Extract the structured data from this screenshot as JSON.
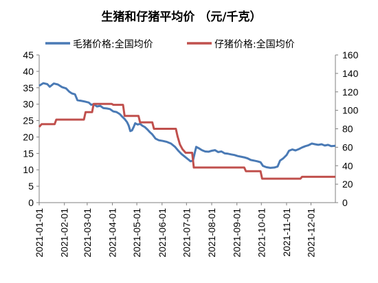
{
  "chart_data": {
    "type": "line",
    "title": "生猪和仔猪平均价 （元/千克）",
    "x_labels": [
      "2021-01-01",
      "2021-02-01",
      "2021-03-01",
      "2021-04-01",
      "2021-05-01",
      "2021-06-01",
      "2021-07-01",
      "2021-08-01",
      "2021-09-01",
      "2021-10-01",
      "2021-11-01",
      "2021-12-01"
    ],
    "x_range": [
      "2021-01-01",
      "2021-12-31"
    ],
    "y_left": {
      "min": 0,
      "max": 45,
      "ticks": [
        "0",
        "5",
        "10",
        "15",
        "20",
        "25",
        "30",
        "35",
        "40",
        "45"
      ]
    },
    "y_right": {
      "min": 0,
      "max": 160,
      "ticks": [
        "0",
        "20",
        "40",
        "60",
        "80",
        "100",
        "120",
        "140",
        "160"
      ]
    },
    "grid": false,
    "legend_position": "top",
    "series": [
      {
        "name": "毛猪价格:全国均价",
        "axis": "left",
        "color": "#4a7ab5",
        "points": [
          [
            "2021-01-01",
            35.6
          ],
          [
            "2021-01-06",
            36.4
          ],
          [
            "2021-01-11",
            36.1
          ],
          [
            "2021-01-14",
            35.3
          ],
          [
            "2021-01-19",
            36.3
          ],
          [
            "2021-01-24",
            36.0
          ],
          [
            "2021-01-29",
            35.2
          ],
          [
            "2021-02-03",
            34.8
          ],
          [
            "2021-02-07",
            33.8
          ],
          [
            "2021-02-10",
            33.3
          ],
          [
            "2021-02-14",
            33.0
          ],
          [
            "2021-02-17",
            31.2
          ],
          [
            "2021-02-22",
            31.0
          ],
          [
            "2021-02-26",
            30.8
          ],
          [
            "2021-03-03",
            30.5
          ],
          [
            "2021-03-06",
            29.8
          ],
          [
            "2021-03-09",
            30.0
          ],
          [
            "2021-03-13",
            29.3
          ],
          [
            "2021-03-17",
            29.5
          ],
          [
            "2021-03-21",
            28.8
          ],
          [
            "2021-03-25",
            28.7
          ],
          [
            "2021-03-29",
            28.5
          ],
          [
            "2021-04-02",
            27.8
          ],
          [
            "2021-04-06",
            27.6
          ],
          [
            "2021-04-10",
            27.0
          ],
          [
            "2021-04-13",
            26.2
          ],
          [
            "2021-04-16",
            25.5
          ],
          [
            "2021-04-19",
            24.5
          ],
          [
            "2021-04-21",
            23.5
          ],
          [
            "2021-04-23",
            21.8
          ],
          [
            "2021-04-25",
            22.0
          ],
          [
            "2021-04-27",
            23.0
          ],
          [
            "2021-04-29",
            24.2
          ],
          [
            "2021-05-02",
            23.8
          ],
          [
            "2021-05-05",
            24.0
          ],
          [
            "2021-05-08",
            23.4
          ],
          [
            "2021-05-11",
            23.0
          ],
          [
            "2021-05-14",
            22.3
          ],
          [
            "2021-05-17",
            21.5
          ],
          [
            "2021-05-20",
            20.8
          ],
          [
            "2021-05-24",
            19.5
          ],
          [
            "2021-05-28",
            19.0
          ],
          [
            "2021-06-02",
            18.8
          ],
          [
            "2021-06-07",
            18.5
          ],
          [
            "2021-06-12",
            18.0
          ],
          [
            "2021-06-17",
            17.0
          ],
          [
            "2021-06-21",
            15.8
          ],
          [
            "2021-06-25",
            14.8
          ],
          [
            "2021-06-29",
            14.0
          ],
          [
            "2021-07-03",
            13.2
          ],
          [
            "2021-07-06",
            12.6
          ],
          [
            "2021-07-09",
            12.8
          ],
          [
            "2021-07-11",
            15.0
          ],
          [
            "2021-07-13",
            17.0
          ],
          [
            "2021-07-16",
            16.6
          ],
          [
            "2021-07-20",
            16.0
          ],
          [
            "2021-07-24",
            15.6
          ],
          [
            "2021-07-28",
            15.5
          ],
          [
            "2021-08-01",
            15.8
          ],
          [
            "2021-08-05",
            16.0
          ],
          [
            "2021-08-09",
            15.4
          ],
          [
            "2021-08-13",
            15.6
          ],
          [
            "2021-08-17",
            15.0
          ],
          [
            "2021-08-21",
            14.9
          ],
          [
            "2021-08-25",
            14.7
          ],
          [
            "2021-08-29",
            14.5
          ],
          [
            "2021-09-02",
            14.2
          ],
          [
            "2021-09-06",
            14.0
          ],
          [
            "2021-09-10",
            13.8
          ],
          [
            "2021-09-14",
            13.5
          ],
          [
            "2021-09-18",
            13.0
          ],
          [
            "2021-09-22",
            12.8
          ],
          [
            "2021-09-26",
            12.6
          ],
          [
            "2021-09-30",
            12.3
          ],
          [
            "2021-10-03",
            11.2
          ],
          [
            "2021-10-07",
            10.8
          ],
          [
            "2021-10-12",
            10.6
          ],
          [
            "2021-10-17",
            10.7
          ],
          [
            "2021-10-21",
            11.0
          ],
          [
            "2021-10-24",
            12.8
          ],
          [
            "2021-10-28",
            13.5
          ],
          [
            "2021-11-01",
            14.5
          ],
          [
            "2021-11-04",
            15.8
          ],
          [
            "2021-11-08",
            16.2
          ],
          [
            "2021-11-12",
            15.9
          ],
          [
            "2021-11-16",
            16.3
          ],
          [
            "2021-11-20",
            16.8
          ],
          [
            "2021-11-24",
            17.2
          ],
          [
            "2021-11-28",
            17.5
          ],
          [
            "2021-12-02",
            18.0
          ],
          [
            "2021-12-06",
            17.8
          ],
          [
            "2021-12-10",
            17.6
          ],
          [
            "2021-12-14",
            17.8
          ],
          [
            "2021-12-18",
            17.4
          ],
          [
            "2021-12-22",
            17.6
          ],
          [
            "2021-12-26",
            17.2
          ],
          [
            "2021-12-31",
            17.3
          ]
        ]
      },
      {
        "name": "仔猪价格:全国均价",
        "axis": "right",
        "color": "#c0504d",
        "points": [
          [
            "2021-01-01",
            82
          ],
          [
            "2021-01-04",
            85
          ],
          [
            "2021-01-20",
            85
          ],
          [
            "2021-01-22",
            90
          ],
          [
            "2021-02-25",
            90
          ],
          [
            "2021-02-27",
            98
          ],
          [
            "2021-03-07",
            98
          ],
          [
            "2021-03-09",
            107
          ],
          [
            "2021-03-31",
            107
          ],
          [
            "2021-04-02",
            106
          ],
          [
            "2021-04-14",
            106
          ],
          [
            "2021-04-16",
            94
          ],
          [
            "2021-05-03",
            94
          ],
          [
            "2021-05-05",
            87
          ],
          [
            "2021-05-20",
            87
          ],
          [
            "2021-05-22",
            80
          ],
          [
            "2021-06-18",
            80
          ],
          [
            "2021-06-20",
            72
          ],
          [
            "2021-06-23",
            63
          ],
          [
            "2021-06-26",
            58
          ],
          [
            "2021-06-30",
            54
          ],
          [
            "2021-07-08",
            54
          ],
          [
            "2021-07-10",
            38
          ],
          [
            "2021-09-10",
            38
          ],
          [
            "2021-09-12",
            34
          ],
          [
            "2021-09-30",
            34
          ],
          [
            "2021-10-02",
            26
          ],
          [
            "2021-11-18",
            26
          ],
          [
            "2021-11-20",
            28
          ],
          [
            "2021-12-31",
            28
          ]
        ]
      }
    ]
  }
}
